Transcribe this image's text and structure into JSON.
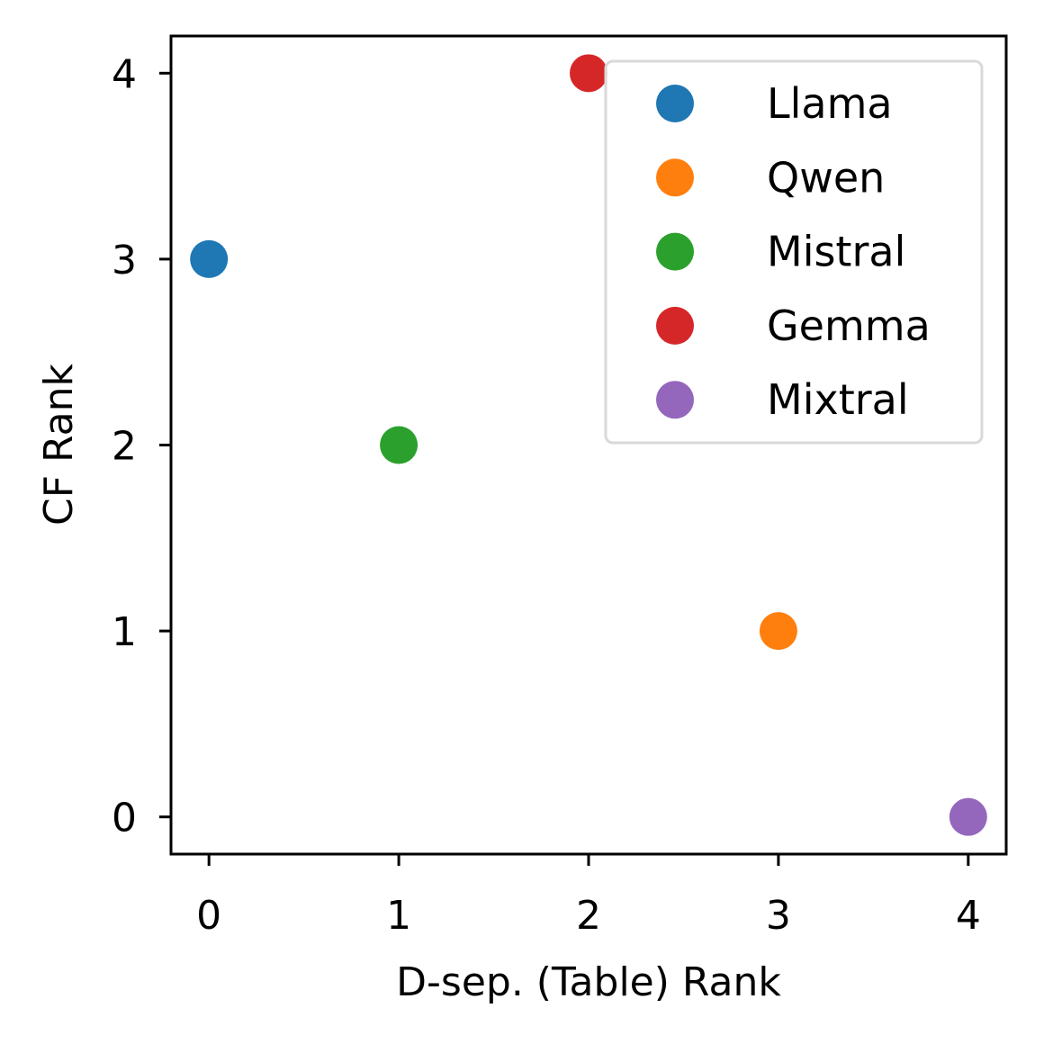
{
  "chart_data": {
    "type": "scatter",
    "title": "",
    "xlabel": "D-sep. (Table) Rank",
    "ylabel": "CF Rank",
    "xlim": [
      -0.2,
      4.2
    ],
    "ylim": [
      -0.2,
      4.2
    ],
    "xticks": [
      0,
      1,
      2,
      3,
      4
    ],
    "yticks": [
      0,
      1,
      2,
      3,
      4
    ],
    "grid": false,
    "legend_position": "top-right",
    "series": [
      {
        "name": "Llama",
        "x": [
          0
        ],
        "y": [
          3
        ],
        "color": "#1f77b4"
      },
      {
        "name": "Qwen",
        "x": [
          3
        ],
        "y": [
          1
        ],
        "color": "#ff7f0e"
      },
      {
        "name": "Mistral",
        "x": [
          1
        ],
        "y": [
          2
        ],
        "color": "#2ca02c"
      },
      {
        "name": "Gemma",
        "x": [
          2
        ],
        "y": [
          4
        ],
        "color": "#d62728"
      },
      {
        "name": "Mixtral",
        "x": [
          4
        ],
        "y": [
          0
        ],
        "color": "#9467bd"
      }
    ]
  }
}
